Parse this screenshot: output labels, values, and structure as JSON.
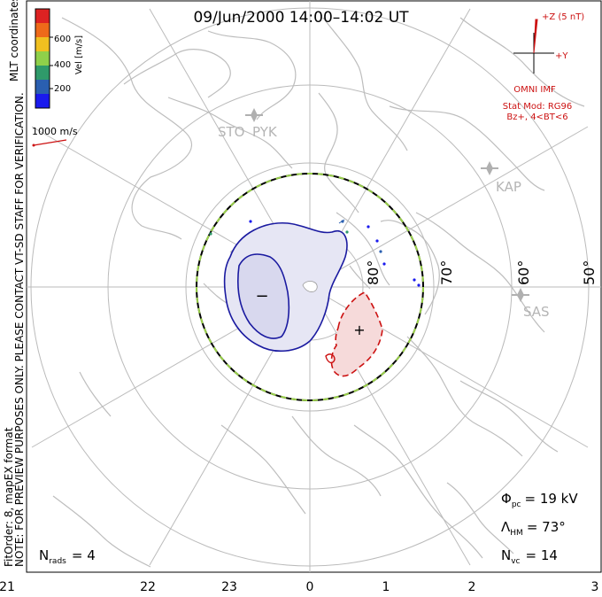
{
  "title": "09/Jun/2000 14:00–14:02 UT",
  "side_notes": {
    "left_main": "NOTE: FOR PREVIEW PURPOSES ONLY. PLEASE CONTACT VT-SD STAFF FOR VERIFICATION.",
    "left_format": "FitOrder: 8, mapEX format",
    "coordinates": "MLT coordinates"
  },
  "velocity_scale": {
    "label": "Vel [m/s]",
    "ticks": [
      "600",
      "400",
      "200"
    ],
    "colors": [
      "#dd2222",
      "#ee6a1a",
      "#f0c020",
      "#8fd04a",
      "#2f9a6a",
      "#2a5fb0",
      "#1a1aee"
    ],
    "reference_vector": "1000 m/s"
  },
  "imf": {
    "z_label": "+Z (5 nT)",
    "y_label": "+Y",
    "source": "OMNI IMF",
    "model": "Stat Mod: RG96",
    "condition": "Bz+, 4<BT<6",
    "color": "#cc1111"
  },
  "stations": [
    "STO",
    "PYK",
    "KAP",
    "SAS"
  ],
  "latitude_labels": [
    "80°",
    "70°",
    "60°",
    "50°"
  ],
  "mlt_labels": [
    "21",
    "22",
    "23",
    "0",
    "1",
    "2",
    "3"
  ],
  "convection_cells": {
    "negative_sign": "−",
    "positive_sign": "+",
    "negative_color": "#1a1aa0",
    "positive_color": "#cc1111"
  },
  "stats": {
    "phi_symbol": "Φ",
    "phi_sub": "pc",
    "phi_value": "= 19 kV",
    "lambda_symbol": "Λ",
    "lambda_sub": "HM",
    "lambda_value": "= 73°",
    "nvc_symbol": "N",
    "nvc_sub": "vc",
    "nvc_value": "= 14",
    "nrads_symbol": "N",
    "nrads_sub": "rads",
    "nrads_value": "= 4"
  }
}
